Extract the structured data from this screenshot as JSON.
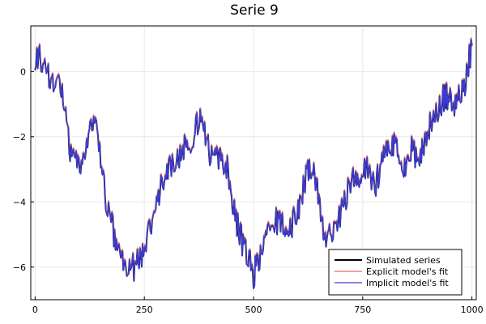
{
  "chart_data": {
    "type": "line",
    "title": "Serie 9",
    "xlabel": "",
    "ylabel": "",
    "xlim": [
      -10,
      1010
    ],
    "ylim": [
      -7.0,
      1.4
    ],
    "xticks": [
      0,
      250,
      500,
      750,
      1000
    ],
    "xtick_labels": [
      "0",
      "250",
      "500",
      "750",
      "1000"
    ],
    "yticks": [
      0,
      -2,
      -4,
      -6
    ],
    "ytick_labels": [
      "0",
      "−2",
      "−4",
      "−6"
    ],
    "grid": true,
    "legend_position": "bottom-right",
    "x": [
      0,
      20,
      40,
      60,
      80,
      100,
      120,
      140,
      160,
      180,
      200,
      220,
      240,
      260,
      280,
      300,
      320,
      340,
      360,
      380,
      400,
      420,
      440,
      460,
      480,
      500,
      520,
      540,
      560,
      580,
      600,
      620,
      640,
      660,
      680,
      700,
      720,
      740,
      760,
      780,
      800,
      820,
      840,
      860,
      880,
      900,
      920,
      940,
      960,
      980,
      1000
    ],
    "series": [
      {
        "name": "Simulated series",
        "color": "#000000",
        "values": [
          0.5,
          0.3,
          -0.3,
          -0.5,
          -2.5,
          -3.0,
          -2.0,
          -1.5,
          -3.8,
          -5.0,
          -5.8,
          -6.1,
          -5.7,
          -5.0,
          -3.8,
          -3.0,
          -2.8,
          -2.4,
          -2.0,
          -1.3,
          -2.6,
          -2.7,
          -3.0,
          -4.5,
          -5.5,
          -6.2,
          -5.5,
          -4.8,
          -4.5,
          -5.0,
          -4.3,
          -3.2,
          -3.0,
          -5.0,
          -4.8,
          -4.4,
          -3.4,
          -3.2,
          -3.0,
          -3.4,
          -2.6,
          -2.2,
          -3.0,
          -2.4,
          -2.6,
          -1.8,
          -1.2,
          -0.7,
          -1.0,
          -0.6,
          0.8
        ]
      },
      {
        "name": "Explicit model's fit",
        "color": "#e26a6a",
        "values": [
          0.5,
          0.28,
          -0.32,
          -0.52,
          -2.48,
          -3.02,
          -2.02,
          -1.48,
          -3.78,
          -5.02,
          -5.82,
          -6.08,
          -5.72,
          -4.98,
          -3.82,
          -3.02,
          -2.78,
          -2.42,
          -1.98,
          -1.32,
          -2.58,
          -2.72,
          -2.98,
          -4.52,
          -5.48,
          -6.22,
          -5.48,
          -4.82,
          -4.48,
          -5.02,
          -4.28,
          -3.22,
          -2.98,
          -5.02,
          -4.78,
          -4.42,
          -3.38,
          -3.22,
          -2.98,
          -3.42,
          -2.58,
          -2.22,
          -2.98,
          -2.42,
          -2.58,
          -1.82,
          -1.18,
          -0.72,
          -0.98,
          -0.62,
          0.78
        ]
      },
      {
        "name": "Implicit model's fit",
        "color": "#3a3ad8",
        "values": [
          0.52,
          0.3,
          -0.3,
          -0.5,
          -2.5,
          -3.0,
          -2.0,
          -1.5,
          -3.8,
          -5.0,
          -5.8,
          -6.1,
          -5.7,
          -5.0,
          -3.8,
          -3.0,
          -2.8,
          -2.4,
          -2.0,
          -1.3,
          -2.6,
          -2.7,
          -3.0,
          -4.5,
          -5.5,
          -6.2,
          -5.5,
          -4.8,
          -4.5,
          -5.0,
          -4.3,
          -3.2,
          -3.0,
          -5.0,
          -4.8,
          -4.4,
          -3.4,
          -3.2,
          -3.0,
          -3.4,
          -2.6,
          -2.2,
          -3.0,
          -2.4,
          -2.6,
          -1.8,
          -1.2,
          -0.7,
          -1.0,
          -0.6,
          0.8
        ]
      }
    ]
  }
}
